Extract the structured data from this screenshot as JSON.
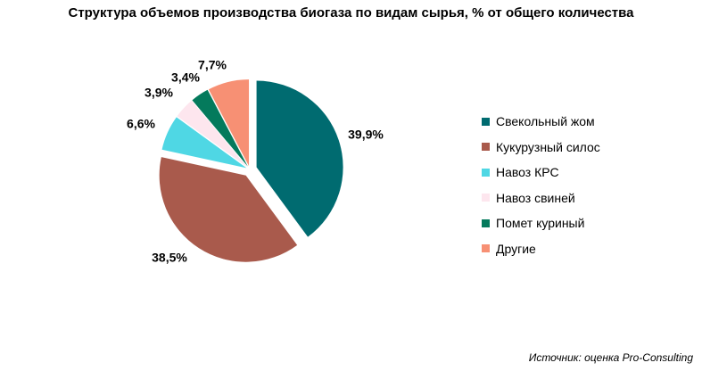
{
  "chart_data": {
    "type": "pie",
    "title": "Структура объемов производства биогаза по видам сырья, % от общего количества",
    "categories": [
      "Свекольный жом",
      "Кукурузный силос",
      "Навоз КРС",
      "Навоз свиней",
      "Помет куриный",
      "Другие"
    ],
    "values": [
      39.9,
      38.5,
      6.6,
      3.9,
      3.4,
      7.7
    ],
    "data_labels": [
      "39,9%",
      "38,5%",
      "6,6%",
      "3,9%",
      "3,4%",
      "7,7%"
    ],
    "colors": [
      "#006b70",
      "#a95a4c",
      "#4fd7e4",
      "#fde6ee",
      "#047a5c",
      "#f79074"
    ],
    "exploded": true,
    "legend_position": "right"
  },
  "source": "Источник: оценка Pro-Consulting"
}
